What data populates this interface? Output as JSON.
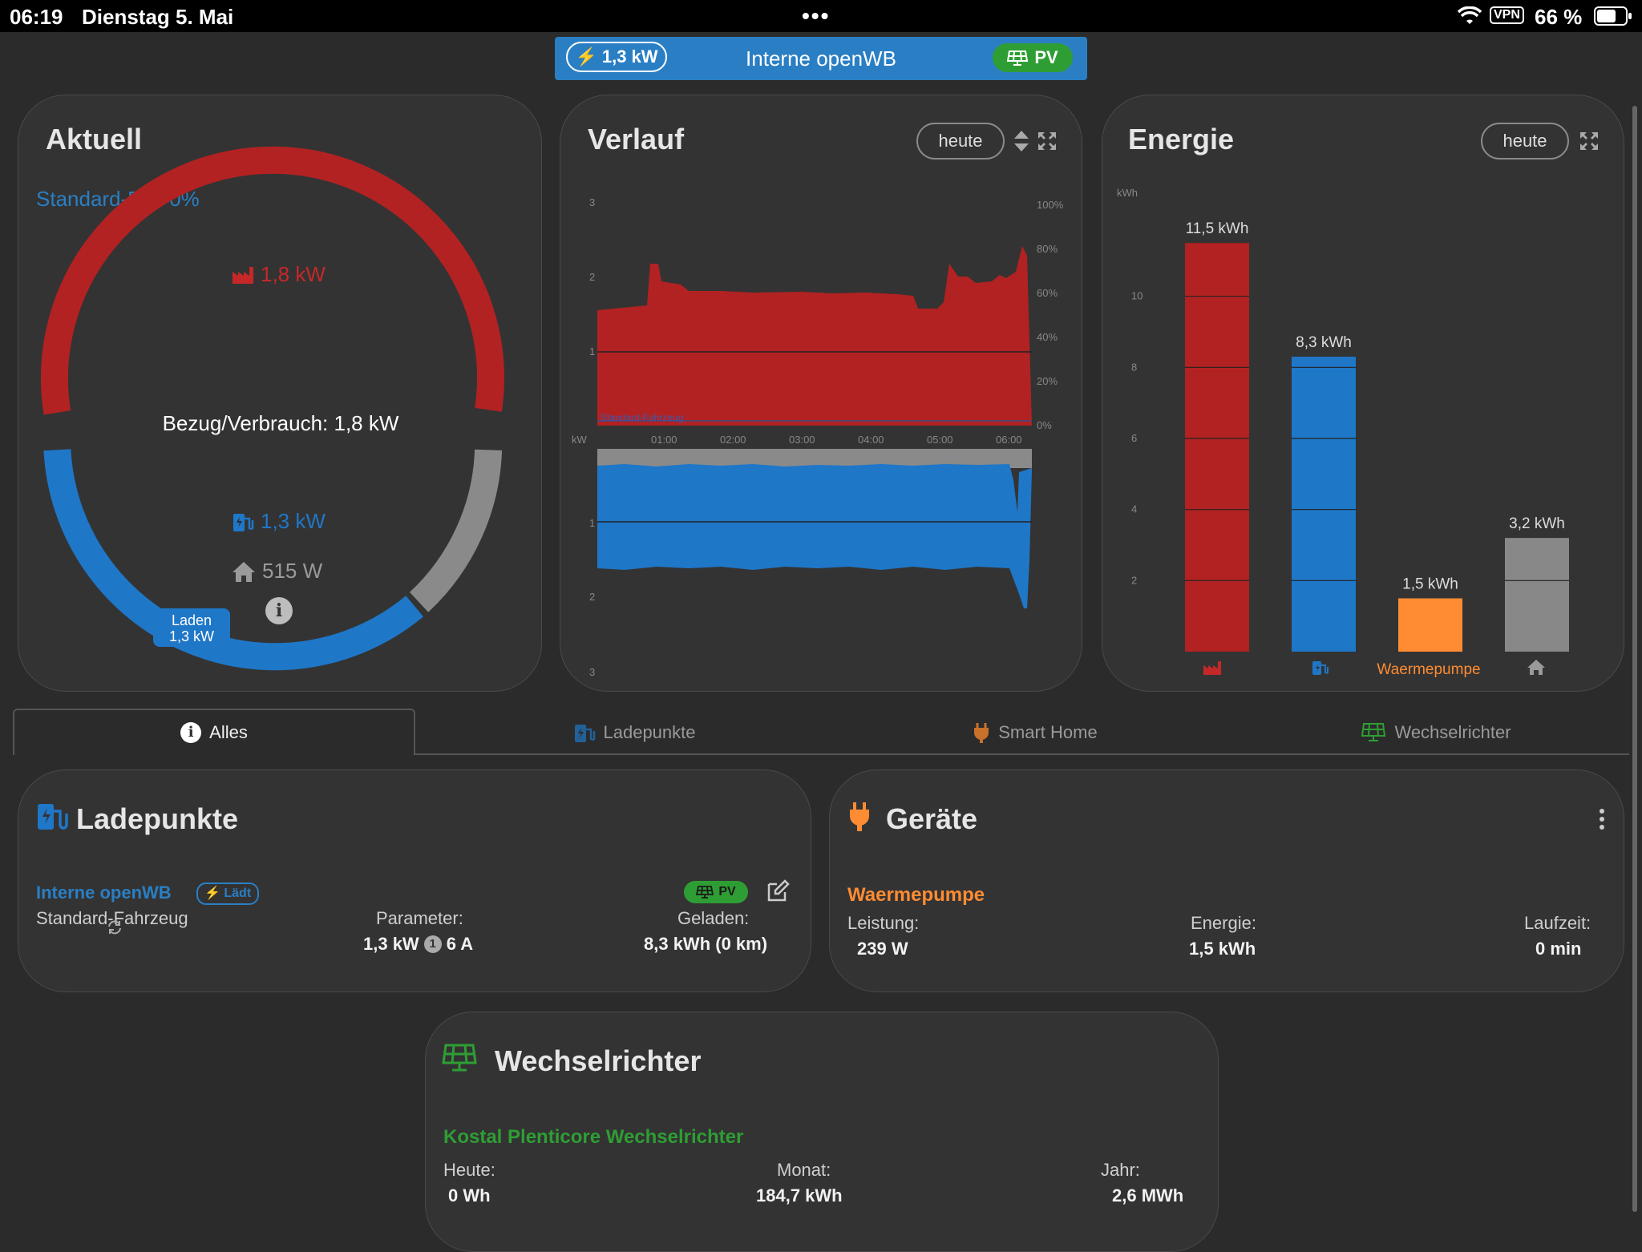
{
  "status": {
    "time": "06:19",
    "date": "Dienstag 5. Mai",
    "vpn": "VPN",
    "battery": "66 %"
  },
  "header": {
    "power": "1,3 kW",
    "title": "Interne openWB",
    "pv": "PV"
  },
  "aktuell": {
    "title": "Aktuell",
    "standard": "Standard-Fa.: 0%",
    "grid": "1,8 kW",
    "center": "Bezug/Verbrauch: 1,8 kW",
    "charge": "1,3 kW",
    "house": "515 W",
    "badge_line1": "Laden",
    "badge_line2": "1,3 kW",
    "info": "i"
  },
  "verlauf": {
    "title": "Verlauf",
    "button": "heute",
    "y_top": [
      "3",
      "2",
      "1"
    ],
    "y_pct": [
      "100%",
      "80%",
      "60%",
      "40%",
      "20%",
      "0%"
    ],
    "x_unit": "kW",
    "x_ticks": [
      "01:00",
      "02:00",
      "03:00",
      "04:00",
      "05:00",
      "06:00"
    ],
    "y_bottom": [
      "1",
      "2",
      "3"
    ],
    "series_label": "Standard-Fahrzeug"
  },
  "energie": {
    "title": "Energie",
    "button": "heute",
    "unit": "kWh",
    "y_ticks": [
      "10",
      "8",
      "6",
      "4",
      "2"
    ],
    "label_waermepumpe": "Waermepumpe"
  },
  "chart_data": {
    "type": "bar",
    "categories": [
      "Netz",
      "Ladepunkte",
      "Waermepumpe",
      "Haus"
    ],
    "values": [
      11.5,
      8.3,
      1.5,
      3.2
    ],
    "value_labels": [
      "11,5 kWh",
      "8,3 kWh",
      "1,5 kWh",
      "3,2 kWh"
    ],
    "colors": [
      "#b22222",
      "#1f77c8",
      "#ff8c33",
      "#888888"
    ],
    "ylabel": "kWh",
    "ylim": [
      0,
      12
    ]
  },
  "tabs": [
    "Alles",
    "Ladepunkte",
    "Smart Home",
    "Wechselrichter"
  ],
  "ladepunkte": {
    "title": "Ladepunkte",
    "name": "Interne openWB",
    "status": "Lädt",
    "pv": "PV",
    "vehicle": "Standard-Fahrzeug",
    "param_label": "Parameter:",
    "param_power": "1,3 kW",
    "param_phases": "1",
    "param_current": "6 A",
    "charged_label": "Geladen:",
    "charged_value": "8,3 kWh (0 km)"
  },
  "geraete": {
    "title": "Geräte",
    "name": "Waermepumpe",
    "power_label": "Leistung:",
    "power_value": "239 W",
    "energy_label": "Energie:",
    "energy_value": "1,5 kWh",
    "runtime_label": "Laufzeit:",
    "runtime_value": "0 min"
  },
  "wechselrichter": {
    "title": "Wechselrichter",
    "name": "Kostal Plenticore Wechselrichter",
    "today_label": "Heute:",
    "today_value": "0 Wh",
    "month_label": "Monat:",
    "month_value": "184,7 kWh",
    "year_label": "Jahr:",
    "year_value": "2,6 MWh"
  },
  "colors": {
    "grid": "#b22222",
    "charge": "#1f77c8",
    "house": "#888888",
    "pv": "#2e9e34",
    "device": "#ff8c33",
    "accent": "#2a7fc4"
  }
}
